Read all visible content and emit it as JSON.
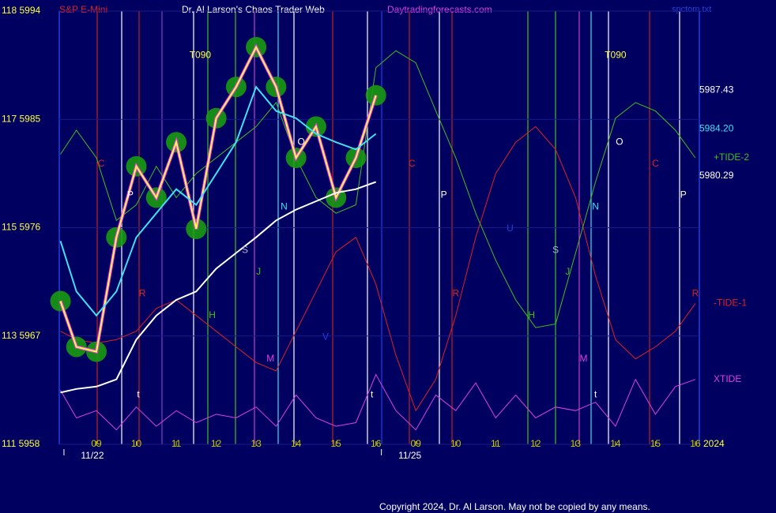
{
  "chart_data": {
    "type": "line",
    "title": "Dr. Al Larson's Chaos Trader Web",
    "header_left": "S&P E-Mini",
    "header_site": "Daytradingforecasts.com",
    "header_file": "spctom.txt",
    "year": "2024",
    "copyright": "Copyright 2024, Dr. Al Larson. May not be copied by any means.",
    "x": [
      -0.9,
      -0.5,
      0,
      0.5,
      1,
      1.5,
      2,
      2.5,
      3,
      3.5,
      4,
      4.5,
      5,
      5.5,
      6,
      6.5,
      7,
      7.5,
      8,
      8.5,
      9,
      9.5,
      10,
      10.5,
      11,
      11.5,
      12,
      12.5,
      13,
      13.5,
      14,
      14.5,
      15
    ],
    "xlim": [
      -0.93,
      15.1
    ],
    "xticks": [
      {
        "value": 0,
        "label": "09"
      },
      {
        "value": 1,
        "label": "10"
      },
      {
        "value": 2,
        "label": "11"
      },
      {
        "value": 3,
        "label": "12"
      },
      {
        "value": 4,
        "label": "13"
      },
      {
        "value": 5,
        "label": "14"
      },
      {
        "value": 6,
        "label": "15"
      },
      {
        "value": 7,
        "label": "16"
      },
      {
        "value": 8,
        "label": "09"
      },
      {
        "value": 9,
        "label": "10"
      },
      {
        "value": 10,
        "label": "11"
      },
      {
        "value": 11,
        "label": "12"
      },
      {
        "value": 12,
        "label": "13"
      },
      {
        "value": 13,
        "label": "14"
      },
      {
        "value": 14,
        "label": "15"
      },
      {
        "value": 15,
        "label": "16"
      }
    ],
    "dates": [
      {
        "value": -0.1,
        "label": "11/22"
      },
      {
        "value": 7.85,
        "label": "11/25"
      }
    ],
    "ylim": [
      5958,
      5994
    ],
    "yticks": [
      {
        "value": 5994,
        "label": "118  5994"
      },
      {
        "value": 5985,
        "label": "117  5985"
      },
      {
        "value": 5976,
        "label": "115  5976"
      },
      {
        "value": 5967,
        "label": "113  5967"
      },
      {
        "value": 5958,
        "label": "111  5958"
      }
    ],
    "grid": true,
    "series": [
      {
        "name": "XTIDE",
        "color": "#e040e0",
        "values": [
          5962.5,
          5960.2,
          5960.8,
          5959.2,
          5961.1,
          5959.5,
          5960.8,
          5959.8,
          5960.5,
          5960.2,
          5961.1,
          5959.5,
          5962.1,
          5960.2,
          5959.5,
          5959.8,
          5963.8,
          5960.8,
          5959.2,
          5962.1,
          5960.8,
          5963.1,
          5960.2,
          5962.1,
          5960.2,
          5961.1,
          5960.8,
          5961.5,
          5959.5,
          5963.4,
          5960.5,
          5962.8,
          5963.4
        ]
      },
      {
        "name": "-TIDE-1",
        "color": "#e02020",
        "values": [
          5967.4,
          5966.7,
          5966.4,
          5966.7,
          5967.4,
          5969.3,
          5970.0,
          5968.7,
          5967.4,
          5966.1,
          5964.8,
          5964.1,
          5967.4,
          5970.7,
          5974.0,
          5975.2,
          5971.3,
          5965.4,
          5960.8,
          5963.4,
          5968.7,
          5975.2,
          5980.5,
          5983.1,
          5984.4,
          5982.5,
          5978.5,
          5972.0,
          5966.7,
          5965.1,
          5966.1,
          5967.4,
          5969.7
        ]
      },
      {
        "name": "+TIDE-2",
        "color": "#40c020",
        "values": [
          5982.1,
          5984.1,
          5981.8,
          5976.6,
          5977.9,
          5981.1,
          5978.5,
          5980.5,
          5981.8,
          5983.1,
          5984.4,
          5986.4,
          5981.8,
          5978.5,
          5977.2,
          5977.9,
          5989.3,
          5990.7,
          5989.7,
          5985.7,
          5981.8,
          5977.2,
          5973.3,
          5970.0,
          5967.7,
          5968.0,
          5973.9,
          5979.8,
          5985.1,
          5986.4,
          5985.7,
          5984.1,
          5981.8
        ]
      },
      {
        "color": "#ffff40",
        "bubbles": true,
        "values": [
          5969.9,
          5966.1,
          5965.7,
          5975.2,
          5981.1,
          5978.5,
          5983.1,
          5975.9,
          5985.1,
          5987.7,
          5991.0,
          5987.7,
          5981.8,
          5984.4,
          5978.5,
          5981.8,
          5987.0,
          null,
          null,
          null,
          null,
          null,
          null,
          null,
          null,
          null,
          null,
          null,
          null,
          null,
          null,
          null,
          null
        ]
      },
      {
        "color": "#40e0f0",
        "values": [
          5974.9,
          5970.7,
          5968.7,
          5970.7,
          5975.2,
          5977.2,
          5979.2,
          5977.9,
          5980.5,
          5983.1,
          5987.7,
          5985.7,
          5985.1,
          5983.8,
          5983.1,
          5982.5,
          5983.8,
          null,
          null,
          null,
          null,
          null,
          null,
          null,
          null,
          null,
          null,
          null,
          null,
          null,
          null,
          null,
          null
        ]
      },
      {
        "color": "#ffffff",
        "values": [
          5962.3,
          5962.6,
          5962.8,
          5963.4,
          5966.7,
          5968.7,
          5970.0,
          5970.7,
          5972.6,
          5973.9,
          5975.2,
          5976.6,
          5977.5,
          5978.2,
          5978.9,
          5979.2,
          5979.8,
          null,
          null,
          null,
          null,
          null,
          null,
          null,
          null,
          null,
          null,
          null,
          null,
          null,
          null,
          null,
          null
        ]
      }
    ],
    "right_labels": [
      {
        "value": 5987.43,
        "label": "5987.43",
        "color": "#ffffff"
      },
      {
        "value": 5984.2,
        "label": "5984.20",
        "color": "#40e0f0"
      },
      {
        "value": 5980.29,
        "label": "5980.29",
        "color": "#ffffff"
      }
    ],
    "annotations": [
      {
        "text": "T090",
        "x": 2.6,
        "y": 5990.3,
        "color": "#ffff40"
      },
      {
        "text": "T090",
        "x": 13.0,
        "y": 5990.3,
        "color": "#ffff40"
      },
      {
        "text": "C",
        "x": 0.12,
        "y": 5981.3,
        "color": "#e02020"
      },
      {
        "text": "P",
        "x": 0.85,
        "y": 5978.7,
        "color": "#ffffff"
      },
      {
        "text": "C",
        "x": 7.9,
        "y": 5981.3,
        "color": "#e02020"
      },
      {
        "text": "P",
        "x": 8.7,
        "y": 5978.7,
        "color": "#ffffff"
      },
      {
        "text": "C",
        "x": 14.0,
        "y": 5981.3,
        "color": "#e02020"
      },
      {
        "text": "P",
        "x": 14.7,
        "y": 5978.7,
        "color": "#ffffff"
      },
      {
        "text": "N",
        "x": 4.7,
        "y": 5977.7,
        "color": "#40e0f0"
      },
      {
        "text": "N",
        "x": 12.5,
        "y": 5977.7,
        "color": "#40e0f0"
      },
      {
        "text": "O",
        "x": 5.13,
        "y": 5983.1,
        "color": "#ffffff"
      },
      {
        "text": "O",
        "x": 13.1,
        "y": 5983.1,
        "color": "#ffffff"
      },
      {
        "text": "S",
        "x": 3.72,
        "y": 5974.1,
        "color": "#b0b0d0"
      },
      {
        "text": "S",
        "x": 11.5,
        "y": 5974.1,
        "color": "#b0b0d0"
      },
      {
        "text": "J",
        "x": 4.06,
        "y": 5972.3,
        "color": "#40c020"
      },
      {
        "text": "J",
        "x": 11.8,
        "y": 5972.3,
        "color": "#40c020"
      },
      {
        "text": "H",
        "x": 2.9,
        "y": 5968.7,
        "color": "#40c020"
      },
      {
        "text": "H",
        "x": 10.9,
        "y": 5968.7,
        "color": "#40c020"
      },
      {
        "text": "R",
        "x": 1.15,
        "y": 5970.5,
        "color": "#e02020"
      },
      {
        "text": "R",
        "x": 9.0,
        "y": 5970.5,
        "color": "#e02020"
      },
      {
        "text": "R",
        "x": 15.0,
        "y": 5970.5,
        "color": "#e02020"
      },
      {
        "text": "M",
        "x": 4.36,
        "y": 5965.1,
        "color": "#e040e0"
      },
      {
        "text": "M",
        "x": 12.2,
        "y": 5965.1,
        "color": "#e040e0"
      },
      {
        "text": "U",
        "x": 10.36,
        "y": 5975.9,
        "color": "#2040e0"
      },
      {
        "text": "V",
        "x": 5.74,
        "y": 5966.9,
        "color": "#2040e0"
      },
      {
        "text": "t",
        "x": 1.05,
        "y": 5962.1,
        "color": "#ffffff"
      },
      {
        "text": "t",
        "x": 6.9,
        "y": 5962.1,
        "color": "#ffffff"
      },
      {
        "text": "t",
        "x": 12.5,
        "y": 5962.1,
        "color": "#ffffff"
      }
    ]
  }
}
